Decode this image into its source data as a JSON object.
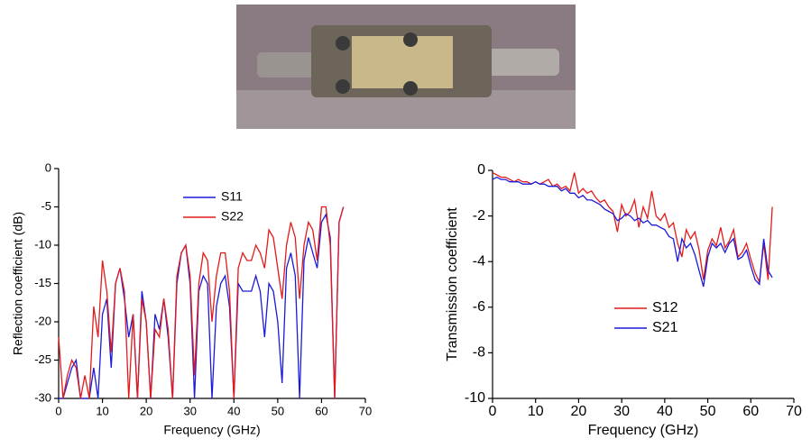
{
  "chart_data": [
    {
      "type": "line",
      "xlabel": "Frequency (GHz)",
      "ylabel": "Reflection coefficient (dB)",
      "xlim": [
        0,
        70
      ],
      "xticks": [
        0,
        10,
        20,
        30,
        40,
        50,
        60,
        70
      ],
      "ylim": [
        -30,
        0
      ],
      "yticks": [
        0,
        -5,
        -10,
        -15,
        -20,
        -25,
        -30
      ],
      "legend": "upper center",
      "x": [
        0,
        1,
        2,
        3,
        4,
        5,
        6,
        7,
        8,
        9,
        10,
        11,
        12,
        13,
        14,
        15,
        16,
        17,
        18,
        19,
        20,
        21,
        22,
        23,
        24,
        25,
        26,
        27,
        28,
        29,
        30,
        31,
        32,
        33,
        34,
        35,
        36,
        37,
        38,
        39,
        40,
        41,
        42,
        43,
        44,
        45,
        46,
        47,
        48,
        49,
        50,
        51,
        52,
        53,
        54,
        55,
        56,
        57,
        58,
        59,
        60,
        61,
        62,
        63,
        64,
        65
      ],
      "series": [
        {
          "name": "S11",
          "color": "#1a1adc",
          "values": [
            -30,
            -30,
            -28,
            -26,
            -25,
            -30,
            -30,
            -30,
            -26,
            -30,
            -19,
            -17,
            -26,
            -15,
            -13,
            -17,
            -22,
            -19,
            -30,
            -16,
            -20,
            -30,
            -19,
            -21,
            -17,
            -22,
            -30,
            -15,
            -11,
            -10,
            -15,
            -30,
            -16,
            -14,
            -15,
            -30,
            -18,
            -15,
            -14,
            -18,
            -30,
            -15,
            -16,
            -16,
            -16,
            -14,
            -16,
            -22,
            -15,
            -16,
            -20,
            -28,
            -13,
            -11,
            -14,
            -30,
            -12,
            -9,
            -11,
            -13,
            -7,
            -6,
            -9,
            -30,
            -7,
            -5
          ]
        },
        {
          "name": "S22",
          "color": "#e41a1a",
          "values": [
            -22,
            -30,
            -27,
            -25,
            -26,
            -30,
            -27,
            -30,
            -18,
            -22,
            -12,
            -16,
            -24,
            -15,
            -13,
            -16,
            -30,
            -19,
            -30,
            -17,
            -20,
            -30,
            -21,
            -22,
            -17,
            -21,
            -30,
            -14,
            -11,
            -10,
            -14,
            -27,
            -15,
            -11,
            -12,
            -20,
            -14,
            -11,
            -11,
            -16,
            -30,
            -13,
            -11,
            -12,
            -12,
            -10,
            -11,
            -13,
            -8,
            -9,
            -13,
            -17,
            -10,
            -7,
            -9,
            -17,
            -10,
            -7,
            -8,
            -12,
            -5,
            -5,
            -10,
            -30,
            -7,
            -5
          ]
        }
      ]
    },
    {
      "type": "line",
      "xlabel": "Frequency (GHz)",
      "ylabel": "Transmission coefficient",
      "xlim": [
        0,
        70
      ],
      "xticks": [
        0,
        10,
        20,
        30,
        40,
        50,
        60,
        70
      ],
      "ylim": [
        -10,
        0
      ],
      "yticks": [
        0,
        -2,
        -4,
        -6,
        -8,
        -10
      ],
      "legend": "lower center",
      "x": [
        0,
        1,
        2,
        3,
        4,
        5,
        6,
        7,
        8,
        9,
        10,
        11,
        12,
        13,
        14,
        15,
        16,
        17,
        18,
        19,
        20,
        21,
        22,
        23,
        24,
        25,
        26,
        27,
        28,
        29,
        30,
        31,
        32,
        33,
        34,
        35,
        36,
        37,
        38,
        39,
        40,
        41,
        42,
        43,
        44,
        45,
        46,
        47,
        48,
        49,
        50,
        51,
        52,
        53,
        54,
        55,
        56,
        57,
        58,
        59,
        60,
        61,
        62,
        63,
        64,
        65
      ],
      "series": [
        {
          "name": "S12",
          "color": "#e41a1a",
          "values": [
            -0.1,
            -0.2,
            -0.3,
            -0.3,
            -0.4,
            -0.5,
            -0.4,
            -0.5,
            -0.5,
            -0.6,
            -0.5,
            -0.6,
            -0.5,
            -0.4,
            -0.7,
            -0.6,
            -0.8,
            -0.7,
            -0.9,
            -0.1,
            -1.0,
            -0.8,
            -1.0,
            -0.9,
            -1.2,
            -1.4,
            -1.3,
            -1.6,
            -1.8,
            -2.7,
            -1.5,
            -2.0,
            -1.8,
            -1.3,
            -2.5,
            -1.6,
            -2.1,
            -0.9,
            -2.0,
            -2.2,
            -1.9,
            -2.5,
            -2.3,
            -3.2,
            -3.8,
            -2.6,
            -3.0,
            -2.7,
            -3.5,
            -4.8,
            -3.5,
            -3.0,
            -3.3,
            -2.5,
            -3.4,
            -3.1,
            -2.6,
            -3.8,
            -3.6,
            -3.2,
            -3.9,
            -4.5,
            -4.9,
            -3.2,
            -4.8,
            -1.6
          ]
        },
        {
          "name": "S21",
          "color": "#1a1adc",
          "values": [
            -0.4,
            -0.3,
            -0.4,
            -0.4,
            -0.5,
            -0.5,
            -0.5,
            -0.6,
            -0.6,
            -0.6,
            -0.5,
            -0.6,
            -0.6,
            -0.7,
            -0.7,
            -0.7,
            -0.9,
            -0.8,
            -1.0,
            -1.0,
            -1.2,
            -1.1,
            -1.3,
            -1.3,
            -1.4,
            -1.5,
            -1.7,
            -1.8,
            -1.9,
            -2.2,
            -2.1,
            -1.9,
            -2.0,
            -2.2,
            -2.1,
            -2.3,
            -2.2,
            -2.4,
            -2.4,
            -2.5,
            -2.6,
            -2.9,
            -3.0,
            -4.0,
            -3.0,
            -3.4,
            -3.2,
            -3.7,
            -4.4,
            -5.1,
            -3.8,
            -3.2,
            -3.4,
            -3.2,
            -3.6,
            -3.2,
            -3.0,
            -3.9,
            -3.8,
            -3.5,
            -4.2,
            -4.8,
            -5.0,
            -3.0,
            -4.4,
            -4.7
          ]
        }
      ]
    }
  ]
}
